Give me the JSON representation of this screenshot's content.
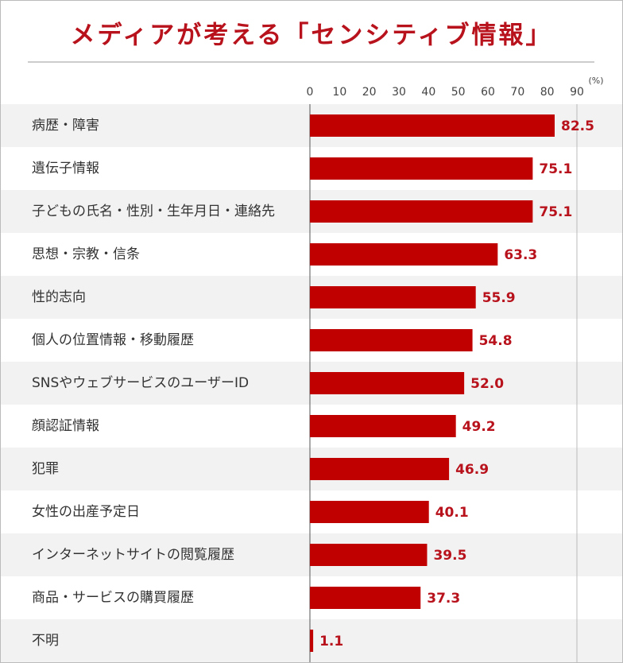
{
  "chart_data": {
    "type": "bar",
    "orientation": "horizontal",
    "title": "メディアが考える「センシティブ情報」",
    "x_unit": "(%)",
    "categories": [
      "病歴・障害",
      "遺伝子情報",
      "子どもの氏名・性別・生年月日・連絡先",
      "思想・宗教・信条",
      "性的志向",
      "個人の位置情報・移動履歴",
      "SNSやウェブサービスのユーザーID",
      "顔認証情報",
      "犯罪",
      "女性の出産予定日",
      "インターネットサイトの閲覧履歴",
      "商品・サービスの購買履歴",
      "不明"
    ],
    "values": [
      82.5,
      75.1,
      75.1,
      63.3,
      55.9,
      54.8,
      52.0,
      49.2,
      46.9,
      40.1,
      39.5,
      37.3,
      1.1
    ],
    "value_labels": [
      "82.5",
      "75.1",
      "75.1",
      "63.3",
      "55.9",
      "54.8",
      "52.0",
      "49.2",
      "46.9",
      "40.1",
      "39.5",
      "37.3",
      "1.1"
    ],
    "color": "#c00000",
    "xlim": [
      0,
      90
    ],
    "xticks": [
      0,
      10,
      20,
      30,
      40,
      50,
      60,
      70,
      80,
      90
    ]
  }
}
